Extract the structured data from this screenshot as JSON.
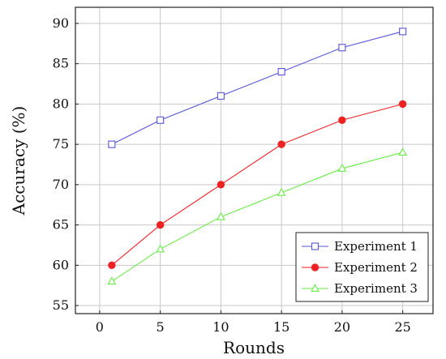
{
  "chart_data": {
    "type": "line",
    "xlabel": "Rounds",
    "ylabel": "Accuracy (%)",
    "xlim": [
      -2,
      27.5
    ],
    "ylim": [
      54,
      92
    ],
    "x_ticks": [
      0,
      5,
      10,
      15,
      20,
      25
    ],
    "y_ticks": [
      55,
      60,
      65,
      70,
      75,
      80,
      85,
      90
    ],
    "grid": true,
    "legend_position": "bottom-right",
    "x": [
      1,
      5,
      10,
      15,
      20,
      25
    ],
    "series": [
      {
        "name": "Experiment 1",
        "color": "#5555dd",
        "marker": "square-open",
        "values": [
          75,
          78,
          81,
          84,
          87,
          89
        ]
      },
      {
        "name": "Experiment 2",
        "color": "#ee2222",
        "marker": "circle-filled",
        "values": [
          60,
          65,
          70,
          75,
          78,
          80
        ]
      },
      {
        "name": "Experiment 3",
        "color": "#66ee44",
        "marker": "triangle-open",
        "values": [
          58,
          62,
          66,
          69,
          72,
          74
        ]
      }
    ]
  }
}
